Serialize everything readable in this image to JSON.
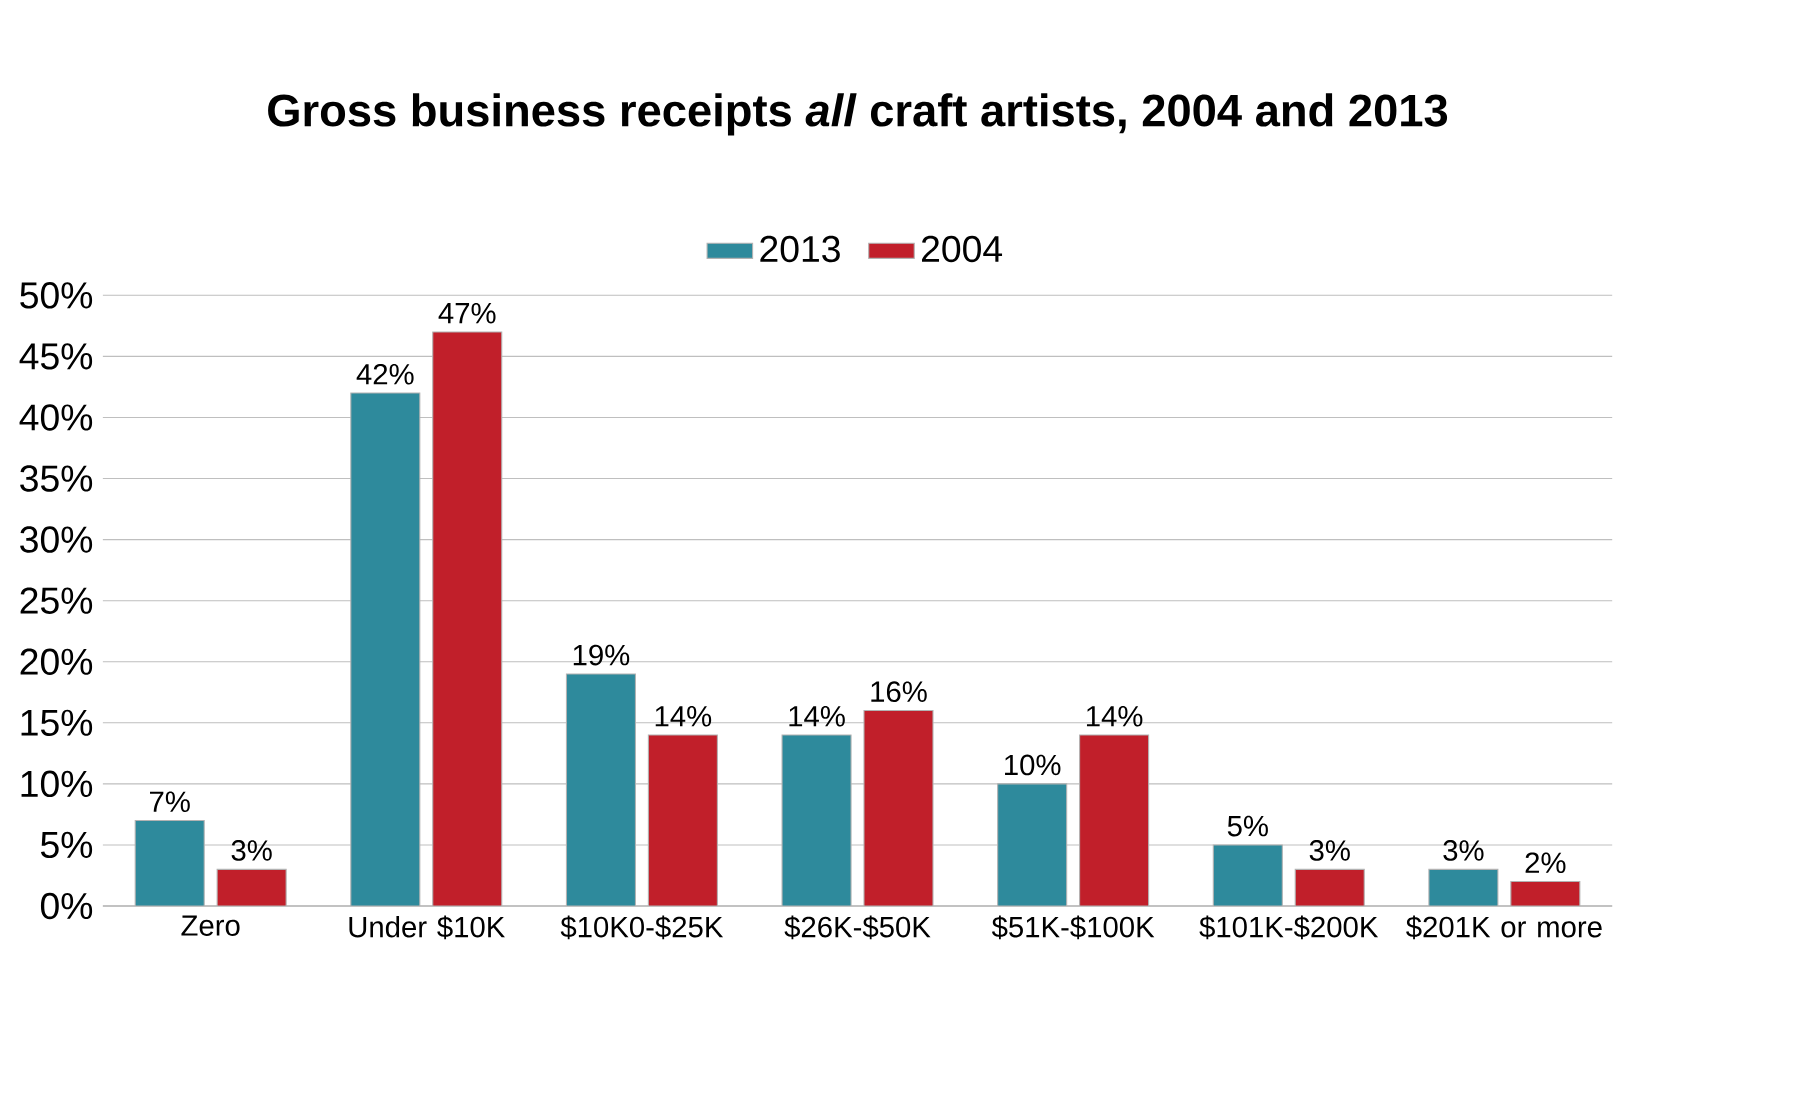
{
  "chart_data": {
    "type": "bar",
    "title": "Gross business receipts *all* craft artists, 2004 and 2013",
    "categories": [
      "Zero",
      "Under $10K",
      "$10K0-$25K",
      "$26K-$50K",
      "$51K-$100K",
      "$101K-$200K",
      "$201K or more"
    ],
    "series": [
      {
        "name": "2013",
        "color": "#2e8a9c",
        "values": [
          7,
          42,
          19,
          14,
          10,
          5,
          3
        ],
        "value_labels": [
          "7%",
          "42%",
          "19%",
          "14%",
          "10%",
          "5%",
          "3%"
        ]
      },
      {
        "name": "2004",
        "color": "#c11f2a",
        "values": [
          3,
          47,
          14,
          16,
          14,
          3,
          2
        ],
        "value_labels": [
          "3%",
          "47%",
          "14%",
          "16%",
          "14%",
          "3%",
          "2%"
        ]
      }
    ],
    "ylim": [
      0,
      50
    ],
    "yticks": [
      {
        "value": 0,
        "label": "0%"
      },
      {
        "value": 5,
        "label": "5%"
      },
      {
        "value": 10,
        "label": "10%"
      },
      {
        "value": 15,
        "label": "15%"
      },
      {
        "value": 20,
        "label": "20%"
      },
      {
        "value": 25,
        "label": "25%"
      },
      {
        "value": 30,
        "label": "30%"
      },
      {
        "value": 35,
        "label": "35%"
      },
      {
        "value": 40,
        "label": "40%"
      },
      {
        "value": 45,
        "label": "45%"
      },
      {
        "value": 50,
        "label": "50%"
      }
    ],
    "grid": "y",
    "legend": "top"
  }
}
